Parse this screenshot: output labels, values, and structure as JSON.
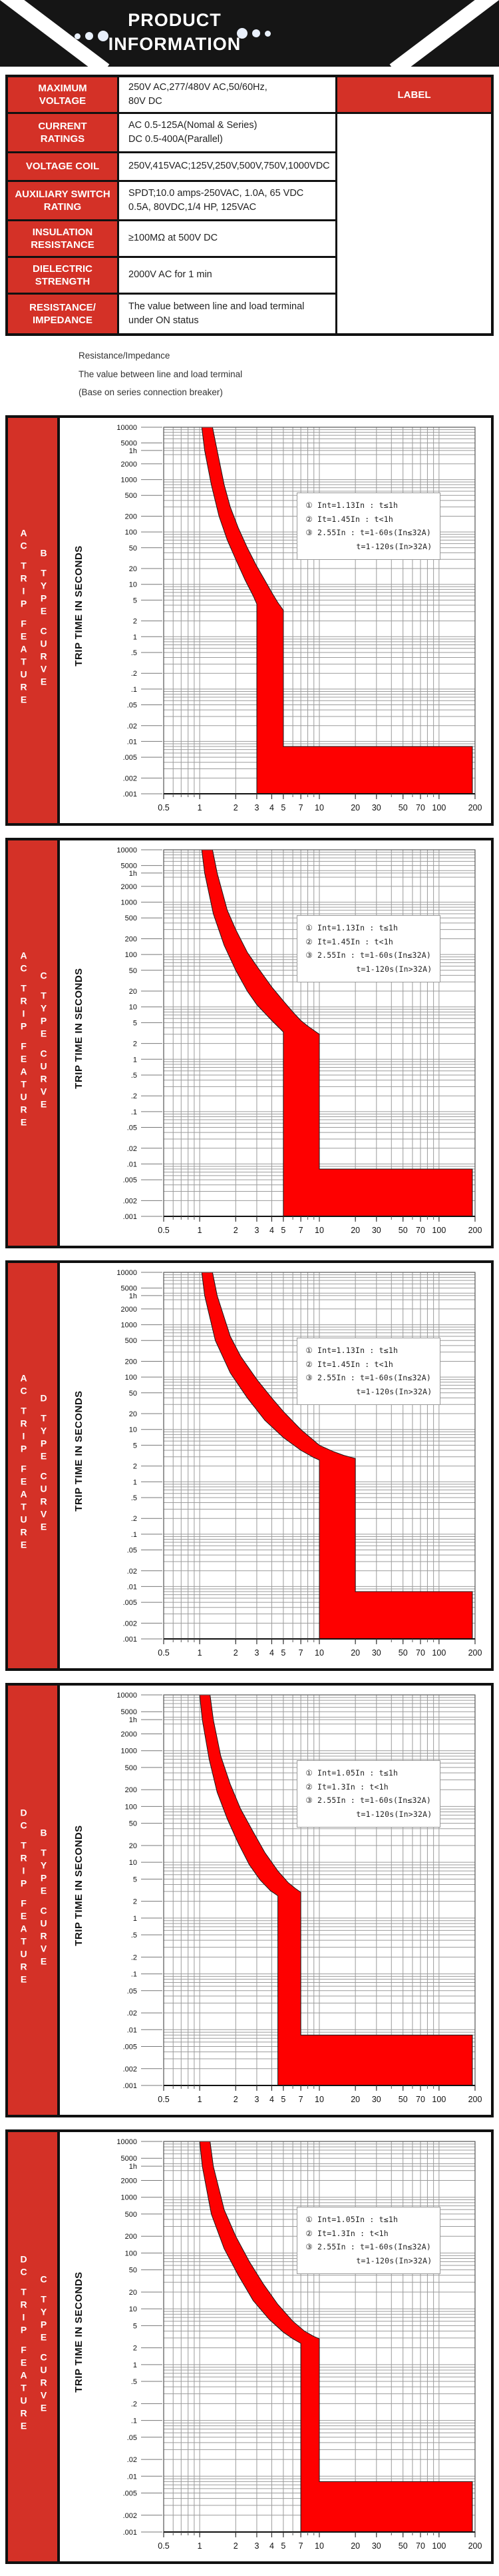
{
  "colors": {
    "accent_red": "#d43127",
    "band_red": "#fe0000",
    "header_black": "#151515",
    "dot": "#e9f0fb"
  },
  "header": {
    "title_line1": "PRODUCT",
    "title_line2": "INFORMATION"
  },
  "table": {
    "right_header": "LABEL",
    "rows": [
      {
        "label": "MAXIMUM\nVOLTAGE",
        "value": "250V AC,277/480V AC,50/60Hz,\n80V DC"
      },
      {
        "label": "CURRENT\nRATINGS",
        "value": "AC 0.5-125A(Nomal & Series)\nDC 0.5-400A(Parallel)"
      },
      {
        "label": "VOLTAGE COIL",
        "value": "250V,415VAC;125V,250V,500V,750V,1000VDC"
      },
      {
        "label": "AUXILIARY SWITCH\nRATING",
        "value": "SPDT;10.0 amps-250VAC, 1.0A, 65 VDC\n0.5A, 80VDC,1/4 HP, 125VAC"
      },
      {
        "label": "INSULATION\nRESISTANCE",
        "value": "≥100MΩ at 500V DC"
      },
      {
        "label": "DIELECTRIC\nSTRENGTH",
        "value": "2000V AC for 1 min"
      },
      {
        "label": "RESISTANCE/\nIMPEDANCE",
        "value": "The value between line and load terminal\nunder ON status"
      }
    ]
  },
  "notes": [
    "Resistance/Impedance",
    "The value between line and load terminal",
    "(Base on series connection breaker)"
  ],
  "axis": {
    "y_ticks": [
      {
        "t": "10000",
        "v": 10000
      },
      {
        "t": "5000",
        "v": 5000
      },
      {
        "t": "1h",
        "v": 3600
      },
      {
        "t": "2000",
        "v": 2000
      },
      {
        "t": "1000",
        "v": 1000
      },
      {
        "t": "500",
        "v": 500
      },
      {
        "t": "200",
        "v": 200
      },
      {
        "t": "100",
        "v": 100
      },
      {
        "t": "50",
        "v": 50
      },
      {
        "t": "20",
        "v": 20
      },
      {
        "t": "10",
        "v": 10
      },
      {
        "t": "5",
        "v": 5
      },
      {
        "t": "2",
        "v": 2
      },
      {
        "t": "1",
        "v": 1
      },
      {
        "t": ".5",
        "v": 0.5
      },
      {
        "t": ".2",
        "v": 0.2
      },
      {
        "t": ".1",
        "v": 0.1
      },
      {
        "t": ".05",
        "v": 0.05
      },
      {
        "t": ".02",
        "v": 0.02
      },
      {
        "t": ".01",
        "v": 0.01
      },
      {
        "t": ".005",
        "v": 0.005
      },
      {
        "t": ".002",
        "v": 0.002
      },
      {
        "t": ".001",
        "v": 0.001
      }
    ],
    "x_ticks": [
      {
        "t": "0.5",
        "v": 0.5
      },
      {
        "t": "1",
        "v": 1
      },
      {
        "t": "2",
        "v": 2
      },
      {
        "t": "3",
        "v": 3
      },
      {
        "t": "4",
        "v": 4
      },
      {
        "t": "5",
        "v": 5
      },
      {
        "t": "7",
        "v": 7
      },
      {
        "t": "10",
        "v": 10
      },
      {
        "t": "20",
        "v": 20
      },
      {
        "t": "30",
        "v": 30
      },
      {
        "t": "50",
        "v": 50
      },
      {
        "t": "70",
        "v": 70
      },
      {
        "t": "100",
        "v": 100
      },
      {
        "t": "200",
        "v": 200
      }
    ]
  },
  "chart_data": [
    {
      "type": "area",
      "title": "AC trip feature - B type curve",
      "sidebar": {
        "feature": [
          "AC",
          "TRIP",
          "FEATURE"
        ],
        "curve": [
          "B",
          "TYPE",
          "CURVE"
        ]
      },
      "ylabel": "TRIP TIME IN SECONDS",
      "xlabel": "",
      "xlim": [
        0.5,
        200
      ],
      "ylim": [
        0.001,
        10000
      ],
      "log_log": true,
      "grid": true,
      "legend": [
        "① Int=1.13In : t≤1h",
        "② It=1.45In : t<1h",
        "③ 2.55In : t=1-60s(In≤32A)",
        "t=1-120s(In>32A)"
      ],
      "band": {
        "upper": [
          [
            1.28,
            10000
          ],
          [
            1.4,
            3600
          ],
          [
            1.6,
            800
          ],
          [
            1.8,
            300
          ],
          [
            2.1,
            120
          ],
          [
            2.5,
            50
          ],
          [
            3,
            22
          ],
          [
            3.5,
            12
          ],
          [
            4,
            7
          ],
          [
            4.5,
            4.5
          ],
          [
            5,
            3.2
          ]
        ],
        "lower": [
          [
            1.04,
            10000
          ],
          [
            1.1,
            3600
          ],
          [
            1.25,
            800
          ],
          [
            1.45,
            200
          ],
          [
            1.7,
            70
          ],
          [
            2,
            30
          ],
          [
            2.4,
            12
          ],
          [
            2.8,
            6
          ],
          [
            3,
            4.2
          ]
        ],
        "inst_min": 3,
        "inst_max": 5,
        "strip_time_max": 0.008,
        "strip_time_min": 0.001,
        "strip_x_end": 190
      }
    },
    {
      "type": "area",
      "title": "AC trip feature - C type curve",
      "sidebar": {
        "feature": [
          "AC",
          "TRIP",
          "FEATURE"
        ],
        "curve": [
          "C",
          "TYPE",
          "CURVE"
        ]
      },
      "ylabel": "TRIP TIME IN SECONDS",
      "xlabel": "",
      "xlim": [
        0.5,
        200
      ],
      "ylim": [
        0.001,
        10000
      ],
      "log_log": true,
      "grid": true,
      "legend": [
        "① Int=1.13In : t≤1h",
        "② It=1.45In : t<1h",
        "③ 2.55In : t=1-60s(In≤32A)",
        "t=1-120s(In>32A)"
      ],
      "band": {
        "upper": [
          [
            1.28,
            10000
          ],
          [
            1.4,
            3600
          ],
          [
            1.7,
            700
          ],
          [
            2,
            300
          ],
          [
            2.5,
            110
          ],
          [
            3,
            60
          ],
          [
            4,
            24
          ],
          [
            5,
            13
          ],
          [
            6,
            8
          ],
          [
            7,
            5.5
          ],
          [
            8,
            4.3
          ],
          [
            10,
            3
          ]
        ],
        "lower": [
          [
            1.04,
            10000
          ],
          [
            1.1,
            3600
          ],
          [
            1.3,
            600
          ],
          [
            1.6,
            150
          ],
          [
            2,
            50
          ],
          [
            2.5,
            20
          ],
          [
            3,
            11
          ],
          [
            4,
            5.5
          ],
          [
            5,
            3.3
          ]
        ],
        "inst_min": 5,
        "inst_max": 10,
        "strip_time_max": 0.008,
        "strip_time_min": 0.001,
        "strip_x_end": 190
      }
    },
    {
      "type": "area",
      "title": "AC trip feature - D type curve",
      "sidebar": {
        "feature": [
          "AC",
          "TRIP",
          "FEATURE"
        ],
        "curve": [
          "D",
          "TYPE",
          "CURVE"
        ]
      },
      "ylabel": "TRIP TIME IN SECONDS",
      "xlabel": "",
      "xlim": [
        0.5,
        200
      ],
      "ylim": [
        0.001,
        10000
      ],
      "log_log": true,
      "grid": true,
      "legend": [
        "① Int=1.13In : t≤1h",
        "② It=1.45In : t<1h",
        "③ 2.55In : t=1-60s(In≤32A)",
        "t=1-120s(In>32A)"
      ],
      "band": {
        "upper": [
          [
            1.28,
            10000
          ],
          [
            1.4,
            3600
          ],
          [
            1.8,
            600
          ],
          [
            2.2,
            250
          ],
          [
            3,
            90
          ],
          [
            4,
            40
          ],
          [
            5,
            22
          ],
          [
            7,
            10
          ],
          [
            10,
            5
          ],
          [
            13,
            3.8
          ],
          [
            16,
            3.2
          ],
          [
            20,
            2.8
          ]
        ],
        "lower": [
          [
            1.04,
            10000
          ],
          [
            1.1,
            3600
          ],
          [
            1.35,
            500
          ],
          [
            1.8,
            120
          ],
          [
            2.5,
            40
          ],
          [
            3.5,
            15
          ],
          [
            5,
            7
          ],
          [
            7,
            4
          ],
          [
            9,
            2.9
          ],
          [
            10,
            2.6
          ]
        ],
        "inst_min": 10,
        "inst_max": 20,
        "strip_time_max": 0.008,
        "strip_time_min": 0.001,
        "strip_x_end": 190
      }
    },
    {
      "type": "area",
      "title": "DC trip feature - B type curve",
      "sidebar": {
        "feature": [
          "DC",
          "TRIP",
          "FEATURE"
        ],
        "curve": [
          "B",
          "TYPE",
          "CURVE"
        ]
      },
      "ylabel": "TRIP TIME IN SECONDS",
      "xlabel": "",
      "xlim": [
        0.5,
        200
      ],
      "ylim": [
        0.001,
        10000
      ],
      "log_log": true,
      "grid": true,
      "legend": [
        "① Int=1.05In : t≤1h",
        "② It=1.3In : t<1h",
        "③ 2.55In : t=1-60s(In≤32A)",
        "t=1-120s(In>32A)"
      ],
      "band": {
        "upper": [
          [
            1.22,
            10000
          ],
          [
            1.3,
            3600
          ],
          [
            1.5,
            800
          ],
          [
            1.8,
            250
          ],
          [
            2.2,
            90
          ],
          [
            2.8,
            35
          ],
          [
            3.5,
            15
          ],
          [
            4.5,
            7
          ],
          [
            5.5,
            4.3
          ],
          [
            6.3,
            3.4
          ],
          [
            7,
            2.9
          ]
        ],
        "lower": [
          [
            1.0,
            10000
          ],
          [
            1.05,
            3600
          ],
          [
            1.2,
            700
          ],
          [
            1.4,
            180
          ],
          [
            1.7,
            60
          ],
          [
            2.1,
            22
          ],
          [
            2.6,
            9
          ],
          [
            3.2,
            4.8
          ],
          [
            3.9,
            3.1
          ],
          [
            4.5,
            2.5
          ]
        ],
        "inst_min": 4.5,
        "inst_max": 7,
        "strip_time_max": 0.008,
        "strip_time_min": 0.001,
        "strip_x_end": 190
      }
    },
    {
      "type": "area",
      "title": "DC trip feature - C type curve",
      "sidebar": {
        "feature": [
          "DC",
          "TRIP",
          "FEATURE"
        ],
        "curve": [
          "C",
          "TYPE",
          "CURVE"
        ]
      },
      "ylabel": "TRIP TIME IN SECONDS",
      "xlabel": "",
      "xlim": [
        0.5,
        200
      ],
      "ylim": [
        0.001,
        10000
      ],
      "log_log": true,
      "grid": true,
      "legend": [
        "① Int=1.05In : t≤1h",
        "② It=1.3In : t<1h",
        "③ 2.55In : t=1-60s(In≤32A)",
        "t=1-120s(In>32A)"
      ],
      "band": {
        "upper": [
          [
            1.22,
            10000
          ],
          [
            1.3,
            3600
          ],
          [
            1.6,
            600
          ],
          [
            2,
            200
          ],
          [
            2.6,
            70
          ],
          [
            3.4,
            28
          ],
          [
            4.5,
            12
          ],
          [
            6,
            6
          ],
          [
            7.5,
            4
          ],
          [
            9,
            3.2
          ],
          [
            10,
            2.9
          ]
        ],
        "lower": [
          [
            1.0,
            10000
          ],
          [
            1.05,
            3600
          ],
          [
            1.25,
            500
          ],
          [
            1.6,
            120
          ],
          [
            2.1,
            40
          ],
          [
            2.8,
            14
          ],
          [
            3.8,
            6.5
          ],
          [
            5,
            3.8
          ],
          [
            6,
            2.9
          ],
          [
            7,
            2.4
          ]
        ],
        "inst_min": 7,
        "inst_max": 10,
        "strip_time_max": 0.008,
        "strip_time_min": 0.001,
        "strip_x_end": 190
      }
    }
  ]
}
